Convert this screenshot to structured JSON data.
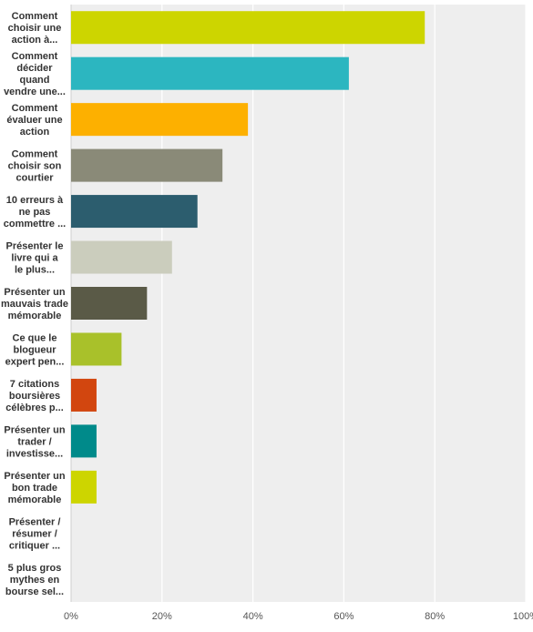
{
  "chart_data": {
    "type": "bar",
    "orientation": "horizontal",
    "categories": [
      [
        "Comment",
        "choisir une",
        "action à..."
      ],
      [
        "Comment",
        "décider",
        "quand",
        "vendre une..."
      ],
      [
        "Comment",
        "évaluer une",
        "action"
      ],
      [
        "Comment",
        "choisir son",
        "courtier"
      ],
      [
        "10 erreurs à",
        "ne pas",
        "commettre ..."
      ],
      [
        "Présenter le",
        "livre qui a",
        "le plus..."
      ],
      [
        "Présenter un",
        "mauvais trade",
        "mémorable"
      ],
      [
        "Ce que le",
        "blogueur",
        "expert pen..."
      ],
      [
        "7 citations",
        "boursières",
        "célèbres p..."
      ],
      [
        "Présenter un",
        "trader /",
        "investisse..."
      ],
      [
        "Présenter un",
        "bon trade",
        "mémorable"
      ],
      [
        "Présenter /",
        "résumer /",
        "critiquer ..."
      ],
      [
        "5 plus gros",
        "mythes en",
        "bourse sel..."
      ]
    ],
    "values": [
      77.8,
      61.1,
      38.9,
      33.3,
      27.8,
      22.2,
      16.7,
      11.1,
      5.6,
      5.6,
      5.6,
      0,
      0
    ],
    "colors": [
      "#cdd500",
      "#2cb6c0",
      "#fdb000",
      "#8a8a78",
      "#2c5d6e",
      "#cbcdbd",
      "#5a5a47",
      "#a9c12a",
      "#d2460f",
      "#008a8a",
      "#cdd500",
      "#cdd500",
      "#cdd500"
    ],
    "xlim": [
      0,
      100
    ],
    "xticks": [
      "0%",
      "20%",
      "40%",
      "60%",
      "80%",
      "100%"
    ],
    "grid": true,
    "background": "#eeeeee"
  }
}
